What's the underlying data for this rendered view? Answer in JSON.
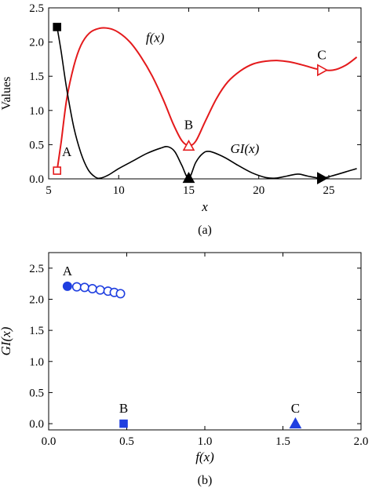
{
  "chart_data": [
    {
      "type": "line",
      "caption": "(a)",
      "xlabel": "x",
      "ylabel": "Values",
      "xlim": [
        5,
        27.3
      ],
      "ylim": [
        0,
        2.5
      ],
      "xticks": [
        5,
        10,
        15,
        20,
        25
      ],
      "yticks": [
        0,
        0.5,
        1,
        1.5,
        2,
        2.5
      ],
      "xtick_labels": [
        "5",
        "10",
        "15",
        "20",
        "25"
      ],
      "ytick_labels": [
        "0.0",
        "0.5",
        "1.0",
        "1.5",
        "2.0",
        "2.5"
      ],
      "series": [
        {
          "name": "f(x)",
          "color": "#e41a1c",
          "x": [
            5.6,
            5.9,
            6.3,
            6.8,
            7.3,
            7.9,
            8.6,
            9.3,
            10.0,
            10.8,
            11.6,
            12.4,
            13.2,
            13.9,
            14.5,
            15.0,
            15.5,
            16.2,
            17.0,
            17.8,
            18.7,
            19.6,
            20.5,
            21.3,
            22.2,
            23.2,
            24.3,
            25.3,
            26.2,
            27.0
          ],
          "y": [
            0.12,
            0.55,
            1.18,
            1.65,
            1.95,
            2.13,
            2.2,
            2.2,
            2.14,
            2.0,
            1.78,
            1.5,
            1.15,
            0.8,
            0.56,
            0.49,
            0.55,
            0.85,
            1.18,
            1.42,
            1.58,
            1.68,
            1.72,
            1.73,
            1.71,
            1.66,
            1.6,
            1.59,
            1.66,
            1.78
          ]
        },
        {
          "name": "GI(x)",
          "color": "#000000",
          "x": [
            5.6,
            5.9,
            6.3,
            6.8,
            7.3,
            7.8,
            8.3,
            8.7,
            9.3,
            10.0,
            11.0,
            12.0,
            13.0,
            13.5,
            14.0,
            14.5,
            15.0,
            15.5,
            16.0,
            16.5,
            17.5,
            18.5,
            19.5,
            20.5,
            21.2,
            22.0,
            22.8,
            23.5,
            24.5,
            25.5,
            26.5,
            27.0
          ],
          "y": [
            2.22,
            1.85,
            1.3,
            0.75,
            0.38,
            0.14,
            0.03,
            0.01,
            0.06,
            0.15,
            0.26,
            0.37,
            0.45,
            0.47,
            0.4,
            0.2,
            0.01,
            0.24,
            0.37,
            0.4,
            0.32,
            0.2,
            0.09,
            0.02,
            0.01,
            0.04,
            0.07,
            0.04,
            0.01,
            0.06,
            0.12,
            0.15
          ]
        }
      ],
      "markers": [
        {
          "label": "A",
          "series": "f(x)",
          "shape": "square-open",
          "x": 5.6,
          "y": 0.12
        },
        {
          "label": "B",
          "series": "f(x)",
          "shape": "triangle-up-open",
          "x": 15.0,
          "y": 0.48
        },
        {
          "label": "C",
          "series": "f(x)",
          "shape": "triangle-right-open",
          "x": 24.5,
          "y": 1.59
        },
        {
          "label": "",
          "series": "GI(x)",
          "shape": "square-filled",
          "x": 5.6,
          "y": 2.22
        },
        {
          "label": "",
          "series": "GI(x)",
          "shape": "triangle-up-filled",
          "x": 15.0,
          "y": 0.01
        },
        {
          "label": "",
          "series": "GI(x)",
          "shape": "triangle-right-filled",
          "x": 24.5,
          "y": 0.01
        }
      ],
      "annotations": [
        {
          "text": "f(x)",
          "x": 12.6,
          "y": 2.0
        },
        {
          "text": "GI(x)",
          "x": 19.0,
          "y": 0.38
        },
        {
          "text": "A",
          "x": 6.3,
          "y": 0.33
        },
        {
          "text": "B",
          "x": 15.0,
          "y": 0.73
        },
        {
          "text": "C",
          "x": 24.5,
          "y": 1.75
        }
      ]
    },
    {
      "type": "scatter",
      "caption": "(b)",
      "xlabel": "f(x)",
      "ylabel": "GI(x)",
      "xlim": [
        0,
        2
      ],
      "ylim": [
        -0.1,
        2.75
      ],
      "xticks": [
        0,
        0.5,
        1,
        1.5,
        2
      ],
      "yticks": [
        0,
        0.5,
        1,
        1.5,
        2,
        2.5
      ],
      "xtick_labels": [
        "0.0",
        "0.5",
        "1.0",
        "1.5",
        "2.0"
      ],
      "ytick_labels": [
        "0.0",
        "0.5",
        "1.0",
        "1.5",
        "2.0",
        "2.5"
      ],
      "color": "#1f3fe0",
      "points": [
        {
          "x": 0.12,
          "y": 2.21,
          "shape": "circle-filled",
          "label": "A"
        },
        {
          "x": 0.18,
          "y": 2.2,
          "shape": "circle-open",
          "label": ""
        },
        {
          "x": 0.23,
          "y": 2.19,
          "shape": "circle-open",
          "label": ""
        },
        {
          "x": 0.28,
          "y": 2.17,
          "shape": "circle-open",
          "label": ""
        },
        {
          "x": 0.33,
          "y": 2.15,
          "shape": "circle-open",
          "label": ""
        },
        {
          "x": 0.38,
          "y": 2.13,
          "shape": "circle-open",
          "label": ""
        },
        {
          "x": 0.42,
          "y": 2.11,
          "shape": "circle-open",
          "label": ""
        },
        {
          "x": 0.46,
          "y": 2.09,
          "shape": "circle-open",
          "label": ""
        },
        {
          "x": 0.48,
          "y": 0.0,
          "shape": "square-filled",
          "label": "B"
        },
        {
          "x": 1.58,
          "y": 0.0,
          "shape": "triangle-up-filled",
          "label": "C"
        }
      ]
    }
  ]
}
